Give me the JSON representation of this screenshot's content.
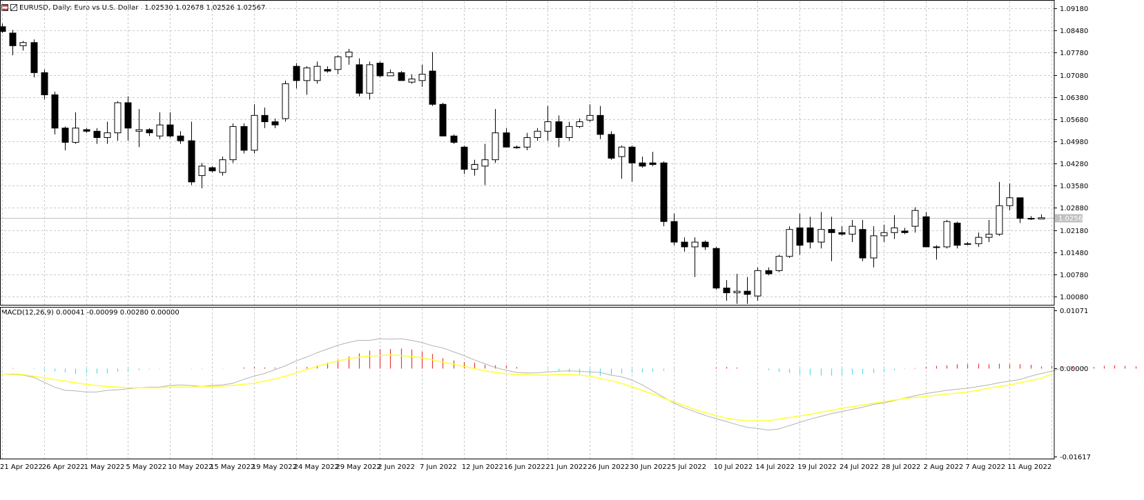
{
  "window": {
    "title": "EURUSD, Daily:  Euro vs U.S. Dollar",
    "ohlc": "1.02530 1.02678 1.02526 1.02567",
    "icons": [
      "chart-menu-icon",
      "symbol-icon"
    ]
  },
  "indicator": {
    "label": "MACD(12,26,9) 0.00041 -0.00099 0.00280 0.00000"
  },
  "colors": {
    "bull_fill": "#ffffff",
    "bear_fill": "#000000",
    "hist_pos": "#e53935",
    "hist_neg": "#4ee0e8",
    "macd_line": "#b3b3b3",
    "signal_line": "#ffff33",
    "grid": "#c8c8c8",
    "price_line": "#c0c0c0"
  },
  "price_axis_labels": [
    "1.09180",
    "1.08480",
    "1.07780",
    "1.07080",
    "1.06380",
    "1.05680",
    "1.04980",
    "1.04280",
    "1.03580",
    "1.02880",
    "1.02180",
    "1.01480",
    "1.00780",
    "1.00080"
  ],
  "current_price_label": "1.02567",
  "macd_axis_labels": [
    "0.01071",
    "0.00000",
    "-0.01617"
  ],
  "date_labels": [
    "21 Apr 2022",
    "26 Apr 2022",
    "1 May 2022",
    "5 May 2022",
    "10 May 2022",
    "15 May 2022",
    "19 May 2022",
    "24 May 2022",
    "29 May 2022",
    "2 Jun 2022",
    "7 Jun 2022",
    "12 Jun 2022",
    "16 Jun 2022",
    "21 Jun 2022",
    "26 Jun 2022",
    "30 Jun 2022",
    "5 Jul 2022",
    "10 Jul 2022",
    "14 Jul 2022",
    "19 Jul 2022",
    "24 Jul 2022",
    "28 Jul 2022",
    "2 Aug 2022",
    "7 Aug 2022",
    "11 Aug 2022"
  ],
  "chart_data": [
    {
      "type": "candlestick",
      "symbol": "EURUSD",
      "timeframe": "Daily",
      "ylim": [
        0.9982,
        1.094
      ],
      "candles": [
        [
          1.086,
          1.087,
          1.084,
          1.0845
        ],
        [
          1.084,
          1.085,
          1.077,
          1.08
        ],
        [
          1.08,
          1.0815,
          1.0785,
          1.081
        ],
        [
          1.081,
          1.082,
          1.07,
          1.0715
        ],
        [
          1.0715,
          1.0725,
          1.063,
          1.0645
        ],
        [
          1.0645,
          1.0655,
          1.052,
          1.054
        ],
        [
          1.054,
          1.0545,
          1.047,
          1.0495
        ],
        [
          1.0495,
          1.059,
          1.049,
          1.054
        ],
        [
          1.0535,
          1.054,
          1.0525,
          1.053
        ],
        [
          1.053,
          1.054,
          1.049,
          1.051
        ],
        [
          1.051,
          1.056,
          1.049,
          1.0525
        ],
        [
          1.0525,
          1.0625,
          1.05,
          1.062
        ],
        [
          1.062,
          1.064,
          1.05,
          1.054
        ],
        [
          1.053,
          1.06,
          1.048,
          1.0535
        ],
        [
          1.0535,
          1.054,
          1.0515,
          1.0525
        ],
        [
          1.0515,
          1.059,
          1.0505,
          1.055
        ],
        [
          1.055,
          1.059,
          1.051,
          1.0515
        ],
        [
          1.0515,
          1.053,
          1.049,
          1.05
        ],
        [
          1.05,
          1.056,
          1.036,
          1.037
        ],
        [
          1.039,
          1.043,
          1.035,
          1.042
        ],
        [
          1.0415,
          1.042,
          1.04,
          1.0405
        ],
        [
          1.04,
          1.045,
          1.039,
          1.044
        ],
        [
          1.044,
          1.0555,
          1.043,
          1.0545
        ],
        [
          1.0545,
          1.0555,
          1.046,
          1.047
        ],
        [
          1.047,
          1.0615,
          1.046,
          1.058
        ],
        [
          1.058,
          1.0605,
          1.054,
          1.056
        ],
        [
          1.056,
          1.057,
          1.054,
          1.055
        ],
        [
          1.057,
          1.069,
          1.056,
          1.068
        ],
        [
          1.0735,
          1.0745,
          1.0665,
          1.069
        ],
        [
          1.069,
          1.0735,
          1.0645,
          1.073
        ],
        [
          1.069,
          1.075,
          1.068,
          1.0735
        ],
        [
          1.0725,
          1.0735,
          1.0715,
          1.072
        ],
        [
          1.0725,
          1.077,
          1.071,
          1.0765
        ],
        [
          1.0765,
          1.079,
          1.074,
          1.078
        ],
        [
          1.074,
          1.076,
          1.064,
          1.065
        ],
        [
          1.065,
          1.075,
          1.063,
          1.074
        ],
        [
          1.0745,
          1.075,
          1.07,
          1.0705
        ],
        [
          1.0705,
          1.0725,
          1.0705,
          1.0715
        ],
        [
          1.0715,
          1.072,
          1.069,
          1.069
        ],
        [
          1.0685,
          1.071,
          1.068,
          1.0695
        ],
        [
          1.069,
          1.074,
          1.067,
          1.071
        ],
        [
          1.072,
          1.078,
          1.061,
          1.0615
        ],
        [
          1.0615,
          1.062,
          1.052,
          1.0515
        ],
        [
          1.0515,
          1.052,
          1.049,
          1.0495
        ],
        [
          1.048,
          1.0485,
          1.0395,
          1.041
        ],
        [
          1.041,
          1.044,
          1.039,
          1.0425
        ],
        [
          1.042,
          1.049,
          1.036,
          1.044
        ],
        [
          1.044,
          1.06,
          1.043,
          1.0525
        ],
        [
          1.0525,
          1.054,
          1.048,
          1.048
        ],
        [
          1.048,
          1.0485,
          1.0475,
          1.0478
        ],
        [
          1.048,
          1.0525,
          1.047,
          1.051
        ],
        [
          1.051,
          1.054,
          1.05,
          1.053
        ],
        [
          1.053,
          1.061,
          1.05,
          1.056
        ],
        [
          1.056,
          1.058,
          1.048,
          1.051
        ],
        [
          1.051,
          1.056,
          1.05,
          1.0545
        ],
        [
          1.0545,
          1.057,
          1.054,
          1.056
        ],
        [
          1.0565,
          1.0615,
          1.056,
          1.058
        ],
        [
          1.058,
          1.061,
          1.0505,
          1.052
        ],
        [
          1.052,
          1.053,
          1.044,
          1.0445
        ],
        [
          1.045,
          1.0485,
          1.038,
          1.048
        ],
        [
          1.048,
          1.0485,
          1.037,
          1.043
        ],
        [
          1.043,
          1.045,
          1.0415,
          1.042
        ],
        [
          1.043,
          1.0465,
          1.042,
          1.0425
        ],
        [
          1.043,
          1.0435,
          1.023,
          1.0245
        ],
        [
          1.0245,
          1.027,
          1.017,
          1.018
        ],
        [
          1.018,
          1.0195,
          1.015,
          1.0165
        ],
        [
          1.0165,
          1.0195,
          1.007,
          1.018
        ],
        [
          1.018,
          1.0185,
          1.0155,
          1.0165
        ],
        [
          1.016,
          1.0165,
          1.003,
          1.0035
        ],
        [
          1.0035,
          1.006,
          0.9995,
          1.002
        ],
        [
          1.002,
          1.008,
          0.9985,
          1.0025
        ],
        [
          1.0025,
          1.007,
          0.9985,
          1.0015
        ],
        [
          1.001,
          1.01,
          0.9995,
          1.009
        ],
        [
          1.009,
          1.01,
          1.0075,
          1.008
        ],
        [
          1.009,
          1.014,
          1.0085,
          1.0135
        ],
        [
          1.0135,
          1.023,
          1.013,
          1.022
        ],
        [
          1.0225,
          1.027,
          1.014,
          1.017
        ],
        [
          1.0225,
          1.026,
          1.016,
          1.018
        ],
        [
          1.018,
          1.0275,
          1.016,
          1.022
        ],
        [
          1.022,
          1.026,
          1.012,
          1.021
        ],
        [
          1.021,
          1.023,
          1.02,
          1.0205
        ],
        [
          1.0205,
          1.025,
          1.018,
          1.023
        ],
        [
          1.022,
          1.025,
          1.012,
          1.013
        ],
        [
          1.013,
          1.023,
          1.01,
          1.02
        ],
        [
          1.02,
          1.0235,
          1.018,
          1.021
        ],
        [
          1.021,
          1.0265,
          1.019,
          1.0225
        ],
        [
          1.0215,
          1.0225,
          1.0205,
          1.021
        ],
        [
          1.023,
          1.029,
          1.021,
          1.028
        ],
        [
          1.026,
          1.0275,
          1.0165,
          1.0165
        ],
        [
          1.0165,
          1.017,
          1.0125,
          1.0165
        ],
        [
          1.0165,
          1.025,
          1.016,
          1.0245
        ],
        [
          1.024,
          1.0245,
          1.016,
          1.017
        ],
        [
          1.0175,
          1.018,
          1.017,
          1.0175
        ],
        [
          1.0175,
          1.021,
          1.0165,
          1.0195
        ],
        [
          1.0195,
          1.025,
          1.018,
          1.0205
        ],
        [
          1.0205,
          1.037,
          1.02,
          1.0295
        ],
        [
          1.0295,
          1.0365,
          1.028,
          1.032
        ],
        [
          1.032,
          1.032,
          1.024,
          1.0255
        ],
        [
          1.0255,
          1.0262,
          1.025,
          1.0253
        ],
        [
          1.0253,
          1.0268,
          1.0253,
          1.0257
        ]
      ]
    },
    {
      "type": "macd",
      "name": "MACD(12,26,9)",
      "ylim": [
        -0.01617,
        0.01071
      ],
      "histogram": [
        0.0,
        0.0001,
        0.0,
        -0.0001,
        -0.0003,
        -0.0005,
        -0.0007,
        -0.001,
        -0.0008,
        -0.0009,
        -0.0009,
        -0.0006,
        -0.0004,
        -0.0003,
        -0.0001,
        -0.0001,
        0.0,
        0.0,
        -0.0001,
        -0.0001,
        0.0,
        -0.0001,
        0.0,
        0.0002,
        0.0003,
        0.0002,
        0.0002,
        0.0,
        0.0001,
        0.0003,
        0.0006,
        0.0011,
        0.0016,
        0.0022,
        0.0028,
        0.0033,
        0.0036,
        0.0036,
        0.0037,
        0.0035,
        0.0031,
        0.0027,
        0.0019,
        0.0015,
        0.0012,
        0.0011,
        0.0007,
        0.0006,
        0.0006,
        0.0003,
        0.0,
        0.0,
        -0.0002,
        -0.0004,
        -0.0007,
        -0.001,
        -0.0011,
        -0.0013,
        -0.0011,
        -0.0009,
        -0.0008,
        -0.0007,
        -0.0006,
        -0.0004,
        -0.0002,
        0.0,
        0.0,
        0.0,
        0.0002,
        0.0003,
        0.0002,
        0.0,
        -0.0001,
        -0.0003,
        -0.0006,
        -0.0008,
        -0.001,
        -0.0012,
        -0.0013,
        -0.0013,
        -0.0012,
        -0.0011,
        -0.001,
        -0.0008,
        -0.0006,
        -0.0003,
        -0.0001,
        0.0001,
        0.0003,
        0.0005,
        0.0006,
        0.0008,
        0.0008,
        0.0009,
        0.0008,
        0.0009,
        0.0008,
        0.0008,
        0.0007,
        0.0004,
        0.0005,
        0.0004,
        0.0004,
        0.0003,
        0.0003,
        0.0005,
        0.0006,
        0.0005,
        0.0004,
        0.0004
      ],
      "macd": [
        -0.001,
        -0.0011,
        -0.0012,
        -0.0016,
        -0.0025,
        -0.0034,
        -0.004,
        -0.0041,
        -0.0043,
        -0.0043,
        -0.004,
        -0.0039,
        -0.0037,
        -0.0035,
        -0.0034,
        -0.0034,
        -0.0031,
        -0.003,
        -0.0031,
        -0.0033,
        -0.0031,
        -0.003,
        -0.0027,
        -0.002,
        -0.0014,
        -0.0009,
        -0.0002,
        0.0005,
        0.0014,
        0.0021,
        0.0029,
        0.0036,
        0.0043,
        0.0048,
        0.0052,
        0.0052,
        0.0055,
        0.0054,
        0.0055,
        0.0052,
        0.0048,
        0.0042,
        0.0038,
        0.0031,
        0.0024,
        0.0016,
        0.0009,
        0.0002,
        -0.0003,
        -0.0007,
        -0.0008,
        -0.0008,
        -0.0006,
        -0.0005,
        -0.0004,
        -0.0005,
        -0.0006,
        -0.0007,
        -0.0012,
        -0.0015,
        -0.0021,
        -0.003,
        -0.0041,
        -0.0052,
        -0.0063,
        -0.0072,
        -0.0079,
        -0.0086,
        -0.0092,
        -0.0097,
        -0.0103,
        -0.0108,
        -0.011,
        -0.0113,
        -0.0111,
        -0.0105,
        -0.0099,
        -0.0093,
        -0.0088,
        -0.0083,
        -0.0079,
        -0.0075,
        -0.0071,
        -0.0066,
        -0.0063,
        -0.0059,
        -0.0054,
        -0.005,
        -0.0046,
        -0.0043,
        -0.004,
        -0.0038,
        -0.0036,
        -0.0033,
        -0.003,
        -0.0026,
        -0.0023,
        -0.002,
        -0.0014,
        -0.0009,
        -0.0005,
        0.0001,
        0.0004
      ],
      "signal": [
        -0.001,
        -0.001,
        -0.0011,
        -0.0014,
        -0.0017,
        -0.002,
        -0.0023,
        -0.0026,
        -0.0029,
        -0.0031,
        -0.0033,
        -0.0034,
        -0.0035,
        -0.0035,
        -0.0035,
        -0.0035,
        -0.0034,
        -0.0034,
        -0.0034,
        -0.0033,
        -0.0033,
        -0.0032,
        -0.0031,
        -0.0029,
        -0.0027,
        -0.0023,
        -0.0019,
        -0.0014,
        -0.0008,
        -0.0002,
        0.0004,
        0.0009,
        0.0014,
        0.0018,
        0.0021,
        0.0023,
        0.0024,
        0.0025,
        0.0024,
        0.0022,
        0.002,
        0.0016,
        0.0012,
        0.0008,
        0.0004,
        0.0,
        -0.0004,
        -0.0007,
        -0.0009,
        -0.0011,
        -0.0011,
        -0.0012,
        -0.0012,
        -0.0011,
        -0.0011,
        -0.0012,
        -0.0014,
        -0.0018,
        -0.0022,
        -0.0027,
        -0.0033,
        -0.004,
        -0.0047,
        -0.0054,
        -0.0061,
        -0.0068,
        -0.0075,
        -0.0081,
        -0.0086,
        -0.0091,
        -0.0094,
        -0.0096,
        -0.0096,
        -0.0096,
        -0.0093,
        -0.009,
        -0.0087,
        -0.0084,
        -0.008,
        -0.0077,
        -0.0073,
        -0.007,
        -0.0067,
        -0.0064,
        -0.0061,
        -0.0058,
        -0.0055,
        -0.0053,
        -0.0051,
        -0.0049,
        -0.0047,
        -0.0045,
        -0.0043,
        -0.004,
        -0.0036,
        -0.0033,
        -0.003,
        -0.0026,
        -0.0022,
        -0.0018,
        -0.001
      ]
    }
  ]
}
